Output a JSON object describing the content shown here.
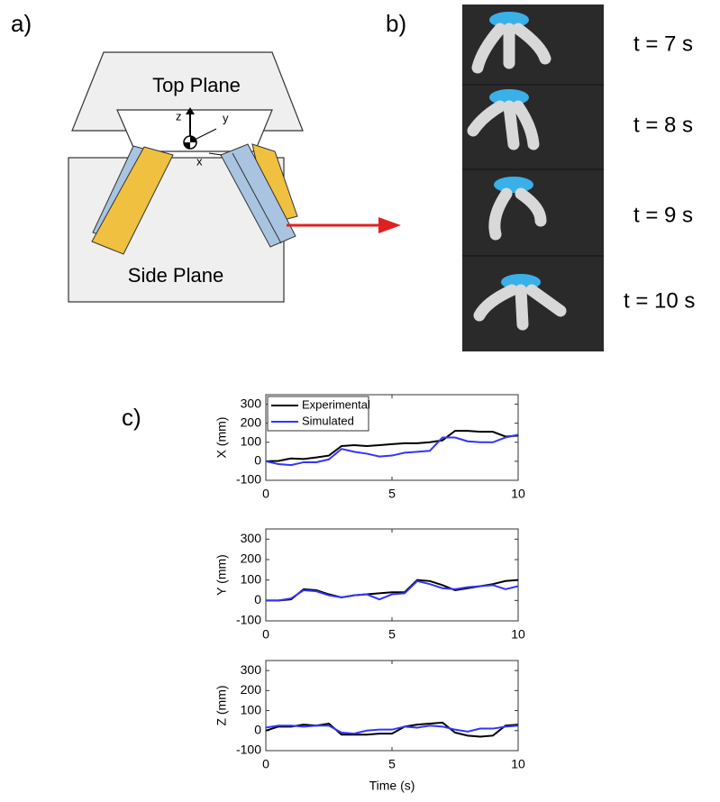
{
  "panel_labels": [
    "a)",
    "b)",
    "c)"
  ],
  "diagram": {
    "top_plane": "Top Plane",
    "side_plane": "Side Plane",
    "axis_z": "z",
    "axis_y": "y",
    "axis_x": "x"
  },
  "photos": {
    "labels": [
      "t = 7 s",
      "t = 8 s",
      "t = 9 s",
      "t = 10 s"
    ]
  },
  "chart_data": [
    {
      "type": "line",
      "ylabel": "X (mm)",
      "legend": "upper left",
      "x": [
        0,
        0.5,
        1,
        1.5,
        2,
        2.5,
        3,
        3.5,
        4,
        4.5,
        5,
        5.5,
        6,
        6.5,
        7,
        7.5,
        8,
        8.5,
        9,
        9.5,
        10
      ],
      "xlim": [
        0,
        10
      ],
      "xticks": [
        0,
        5,
        10
      ],
      "ylim": [
        -100,
        350
      ],
      "yticks": [
        -100,
        0,
        100,
        200,
        300
      ],
      "series": [
        {
          "name": "Experimental",
          "color": "#000000",
          "values": [
            0,
            2,
            15,
            12,
            20,
            30,
            80,
            85,
            80,
            85,
            90,
            95,
            95,
            100,
            110,
            160,
            160,
            155,
            155,
            130,
            135
          ]
        },
        {
          "name": "Simulated",
          "color": "#3333ff",
          "values": [
            0,
            -15,
            -20,
            -5,
            -5,
            10,
            65,
            50,
            40,
            25,
            30,
            45,
            50,
            55,
            125,
            125,
            105,
            100,
            100,
            125,
            140
          ]
        }
      ]
    },
    {
      "type": "line",
      "ylabel": "Y (mm)",
      "x": [
        0,
        0.5,
        1,
        1.5,
        2,
        2.5,
        3,
        3.5,
        4,
        4.5,
        5,
        5.5,
        6,
        6.5,
        7,
        7.5,
        8,
        8.5,
        9,
        9.5,
        10
      ],
      "xlim": [
        0,
        10
      ],
      "xticks": [
        0,
        5,
        10
      ],
      "ylim": [
        -100,
        350
      ],
      "yticks": [
        -100,
        0,
        100,
        200,
        300
      ],
      "series": [
        {
          "color": "#000000",
          "values": [
            0,
            0,
            5,
            55,
            50,
            30,
            15,
            25,
            30,
            35,
            40,
            40,
            100,
            95,
            75,
            50,
            60,
            70,
            80,
            95,
            100
          ]
        },
        {
          "color": "#3333ff",
          "values": [
            0,
            0,
            10,
            50,
            45,
            25,
            15,
            25,
            30,
            5,
            30,
            35,
            95,
            80,
            60,
            55,
            65,
            70,
            75,
            55,
            70
          ]
        }
      ]
    },
    {
      "type": "line",
      "ylabel": "Z (mm)",
      "xlabel": "Time (s)",
      "x": [
        0,
        0.5,
        1,
        1.5,
        2,
        2.5,
        3,
        3.5,
        4,
        4.5,
        5,
        5.5,
        6,
        6.5,
        7,
        7.5,
        8,
        8.5,
        9,
        9.5,
        10
      ],
      "xlim": [
        0,
        10
      ],
      "xticks": [
        0,
        5,
        10
      ],
      "ylim": [
        -100,
        350
      ],
      "yticks": [
        -100,
        0,
        100,
        200,
        300
      ],
      "series": [
        {
          "color": "#000000",
          "values": [
            0,
            20,
            20,
            30,
            25,
            35,
            -20,
            -20,
            -20,
            -15,
            -15,
            20,
            30,
            35,
            40,
            -10,
            -25,
            -30,
            -25,
            25,
            30
          ]
        },
        {
          "color": "#3333ff",
          "values": [
            15,
            25,
            25,
            20,
            25,
            25,
            -10,
            -15,
            0,
            5,
            5,
            20,
            15,
            25,
            20,
            5,
            -5,
            10,
            10,
            20,
            25
          ]
        }
      ]
    }
  ]
}
